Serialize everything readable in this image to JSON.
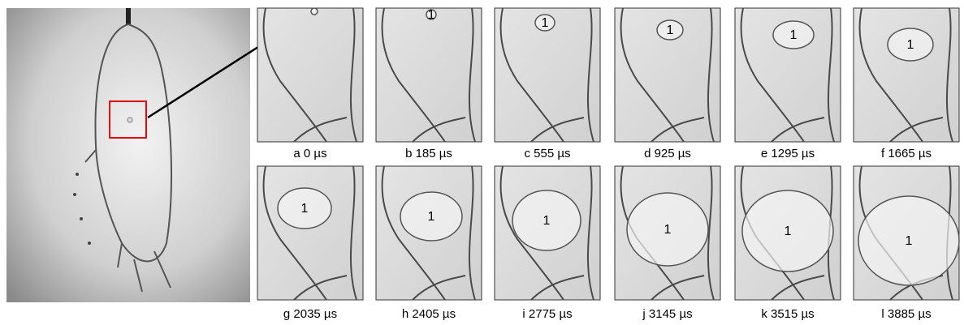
{
  "panels": [
    {
      "caption": "a 0 µs"
    },
    {
      "caption": "b 185 µs",
      "label": "1"
    },
    {
      "caption": "c 555 µs",
      "label": "1"
    },
    {
      "caption": "d 925 µs",
      "label": "1"
    },
    {
      "caption": "e 1295 µs",
      "label": "1"
    },
    {
      "caption": "f 1665 µs",
      "label": "1"
    },
    {
      "caption": "g 2035 µs",
      "label": "1"
    },
    {
      "caption": "h 2405 µs",
      "label": "1"
    },
    {
      "caption": "i 2775 µs",
      "label": "1"
    },
    {
      "caption": "j 3145 µs",
      "label": "1"
    },
    {
      "caption": "k 3515 µs",
      "label": "1"
    },
    {
      "caption": "l 3885 µs",
      "label": "1"
    }
  ]
}
